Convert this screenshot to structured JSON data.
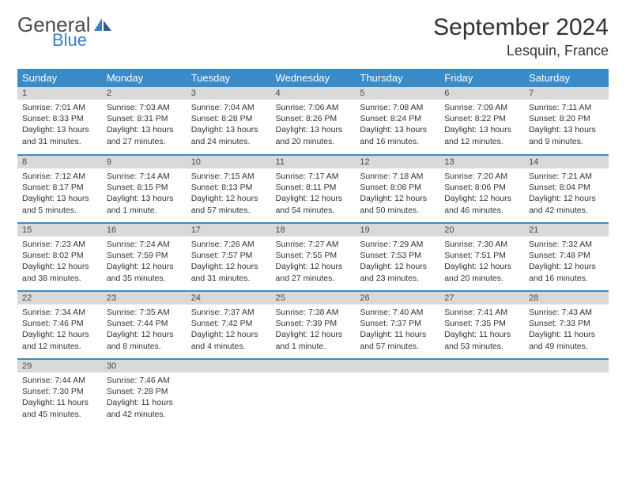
{
  "brand": {
    "word1": "General",
    "word2": "Blue",
    "logo_color": "#3a7fc4"
  },
  "title": {
    "month": "September 2024",
    "location": "Lesquin, France"
  },
  "colors": {
    "header_bg": "#3a8bc9",
    "header_text": "#ffffff",
    "daynum_bg": "#d9d9d9",
    "row_divider": "#3a8bc9",
    "text": "#333333"
  },
  "weekdays": [
    "Sunday",
    "Monday",
    "Tuesday",
    "Wednesday",
    "Thursday",
    "Friday",
    "Saturday"
  ],
  "days": [
    {
      "n": "1",
      "sunrise": "7:01 AM",
      "sunset": "8:33 PM",
      "daylight": "13 hours and 31 minutes."
    },
    {
      "n": "2",
      "sunrise": "7:03 AM",
      "sunset": "8:31 PM",
      "daylight": "13 hours and 27 minutes."
    },
    {
      "n": "3",
      "sunrise": "7:04 AM",
      "sunset": "8:28 PM",
      "daylight": "13 hours and 24 minutes."
    },
    {
      "n": "4",
      "sunrise": "7:06 AM",
      "sunset": "8:26 PM",
      "daylight": "13 hours and 20 minutes."
    },
    {
      "n": "5",
      "sunrise": "7:08 AM",
      "sunset": "8:24 PM",
      "daylight": "13 hours and 16 minutes."
    },
    {
      "n": "6",
      "sunrise": "7:09 AM",
      "sunset": "8:22 PM",
      "daylight": "13 hours and 12 minutes."
    },
    {
      "n": "7",
      "sunrise": "7:11 AM",
      "sunset": "8:20 PM",
      "daylight": "13 hours and 9 minutes."
    },
    {
      "n": "8",
      "sunrise": "7:12 AM",
      "sunset": "8:17 PM",
      "daylight": "13 hours and 5 minutes."
    },
    {
      "n": "9",
      "sunrise": "7:14 AM",
      "sunset": "8:15 PM",
      "daylight": "13 hours and 1 minute."
    },
    {
      "n": "10",
      "sunrise": "7:15 AM",
      "sunset": "8:13 PM",
      "daylight": "12 hours and 57 minutes."
    },
    {
      "n": "11",
      "sunrise": "7:17 AM",
      "sunset": "8:11 PM",
      "daylight": "12 hours and 54 minutes."
    },
    {
      "n": "12",
      "sunrise": "7:18 AM",
      "sunset": "8:08 PM",
      "daylight": "12 hours and 50 minutes."
    },
    {
      "n": "13",
      "sunrise": "7:20 AM",
      "sunset": "8:06 PM",
      "daylight": "12 hours and 46 minutes."
    },
    {
      "n": "14",
      "sunrise": "7:21 AM",
      "sunset": "8:04 PM",
      "daylight": "12 hours and 42 minutes."
    },
    {
      "n": "15",
      "sunrise": "7:23 AM",
      "sunset": "8:02 PM",
      "daylight": "12 hours and 38 minutes."
    },
    {
      "n": "16",
      "sunrise": "7:24 AM",
      "sunset": "7:59 PM",
      "daylight": "12 hours and 35 minutes."
    },
    {
      "n": "17",
      "sunrise": "7:26 AM",
      "sunset": "7:57 PM",
      "daylight": "12 hours and 31 minutes."
    },
    {
      "n": "18",
      "sunrise": "7:27 AM",
      "sunset": "7:55 PM",
      "daylight": "12 hours and 27 minutes."
    },
    {
      "n": "19",
      "sunrise": "7:29 AM",
      "sunset": "7:53 PM",
      "daylight": "12 hours and 23 minutes."
    },
    {
      "n": "20",
      "sunrise": "7:30 AM",
      "sunset": "7:51 PM",
      "daylight": "12 hours and 20 minutes."
    },
    {
      "n": "21",
      "sunrise": "7:32 AM",
      "sunset": "7:48 PM",
      "daylight": "12 hours and 16 minutes."
    },
    {
      "n": "22",
      "sunrise": "7:34 AM",
      "sunset": "7:46 PM",
      "daylight": "12 hours and 12 minutes."
    },
    {
      "n": "23",
      "sunrise": "7:35 AM",
      "sunset": "7:44 PM",
      "daylight": "12 hours and 8 minutes."
    },
    {
      "n": "24",
      "sunrise": "7:37 AM",
      "sunset": "7:42 PM",
      "daylight": "12 hours and 4 minutes."
    },
    {
      "n": "25",
      "sunrise": "7:38 AM",
      "sunset": "7:39 PM",
      "daylight": "12 hours and 1 minute."
    },
    {
      "n": "26",
      "sunrise": "7:40 AM",
      "sunset": "7:37 PM",
      "daylight": "11 hours and 57 minutes."
    },
    {
      "n": "27",
      "sunrise": "7:41 AM",
      "sunset": "7:35 PM",
      "daylight": "11 hours and 53 minutes."
    },
    {
      "n": "28",
      "sunrise": "7:43 AM",
      "sunset": "7:33 PM",
      "daylight": "11 hours and 49 minutes."
    },
    {
      "n": "29",
      "sunrise": "7:44 AM",
      "sunset": "7:30 PM",
      "daylight": "11 hours and 45 minutes."
    },
    {
      "n": "30",
      "sunrise": "7:46 AM",
      "sunset": "7:28 PM",
      "daylight": "11 hours and 42 minutes."
    }
  ],
  "labels": {
    "sunrise": "Sunrise:",
    "sunset": "Sunset:",
    "daylight": "Daylight:"
  },
  "layout": {
    "cols": 7,
    "rows": 5,
    "trailing_empty": 5
  }
}
